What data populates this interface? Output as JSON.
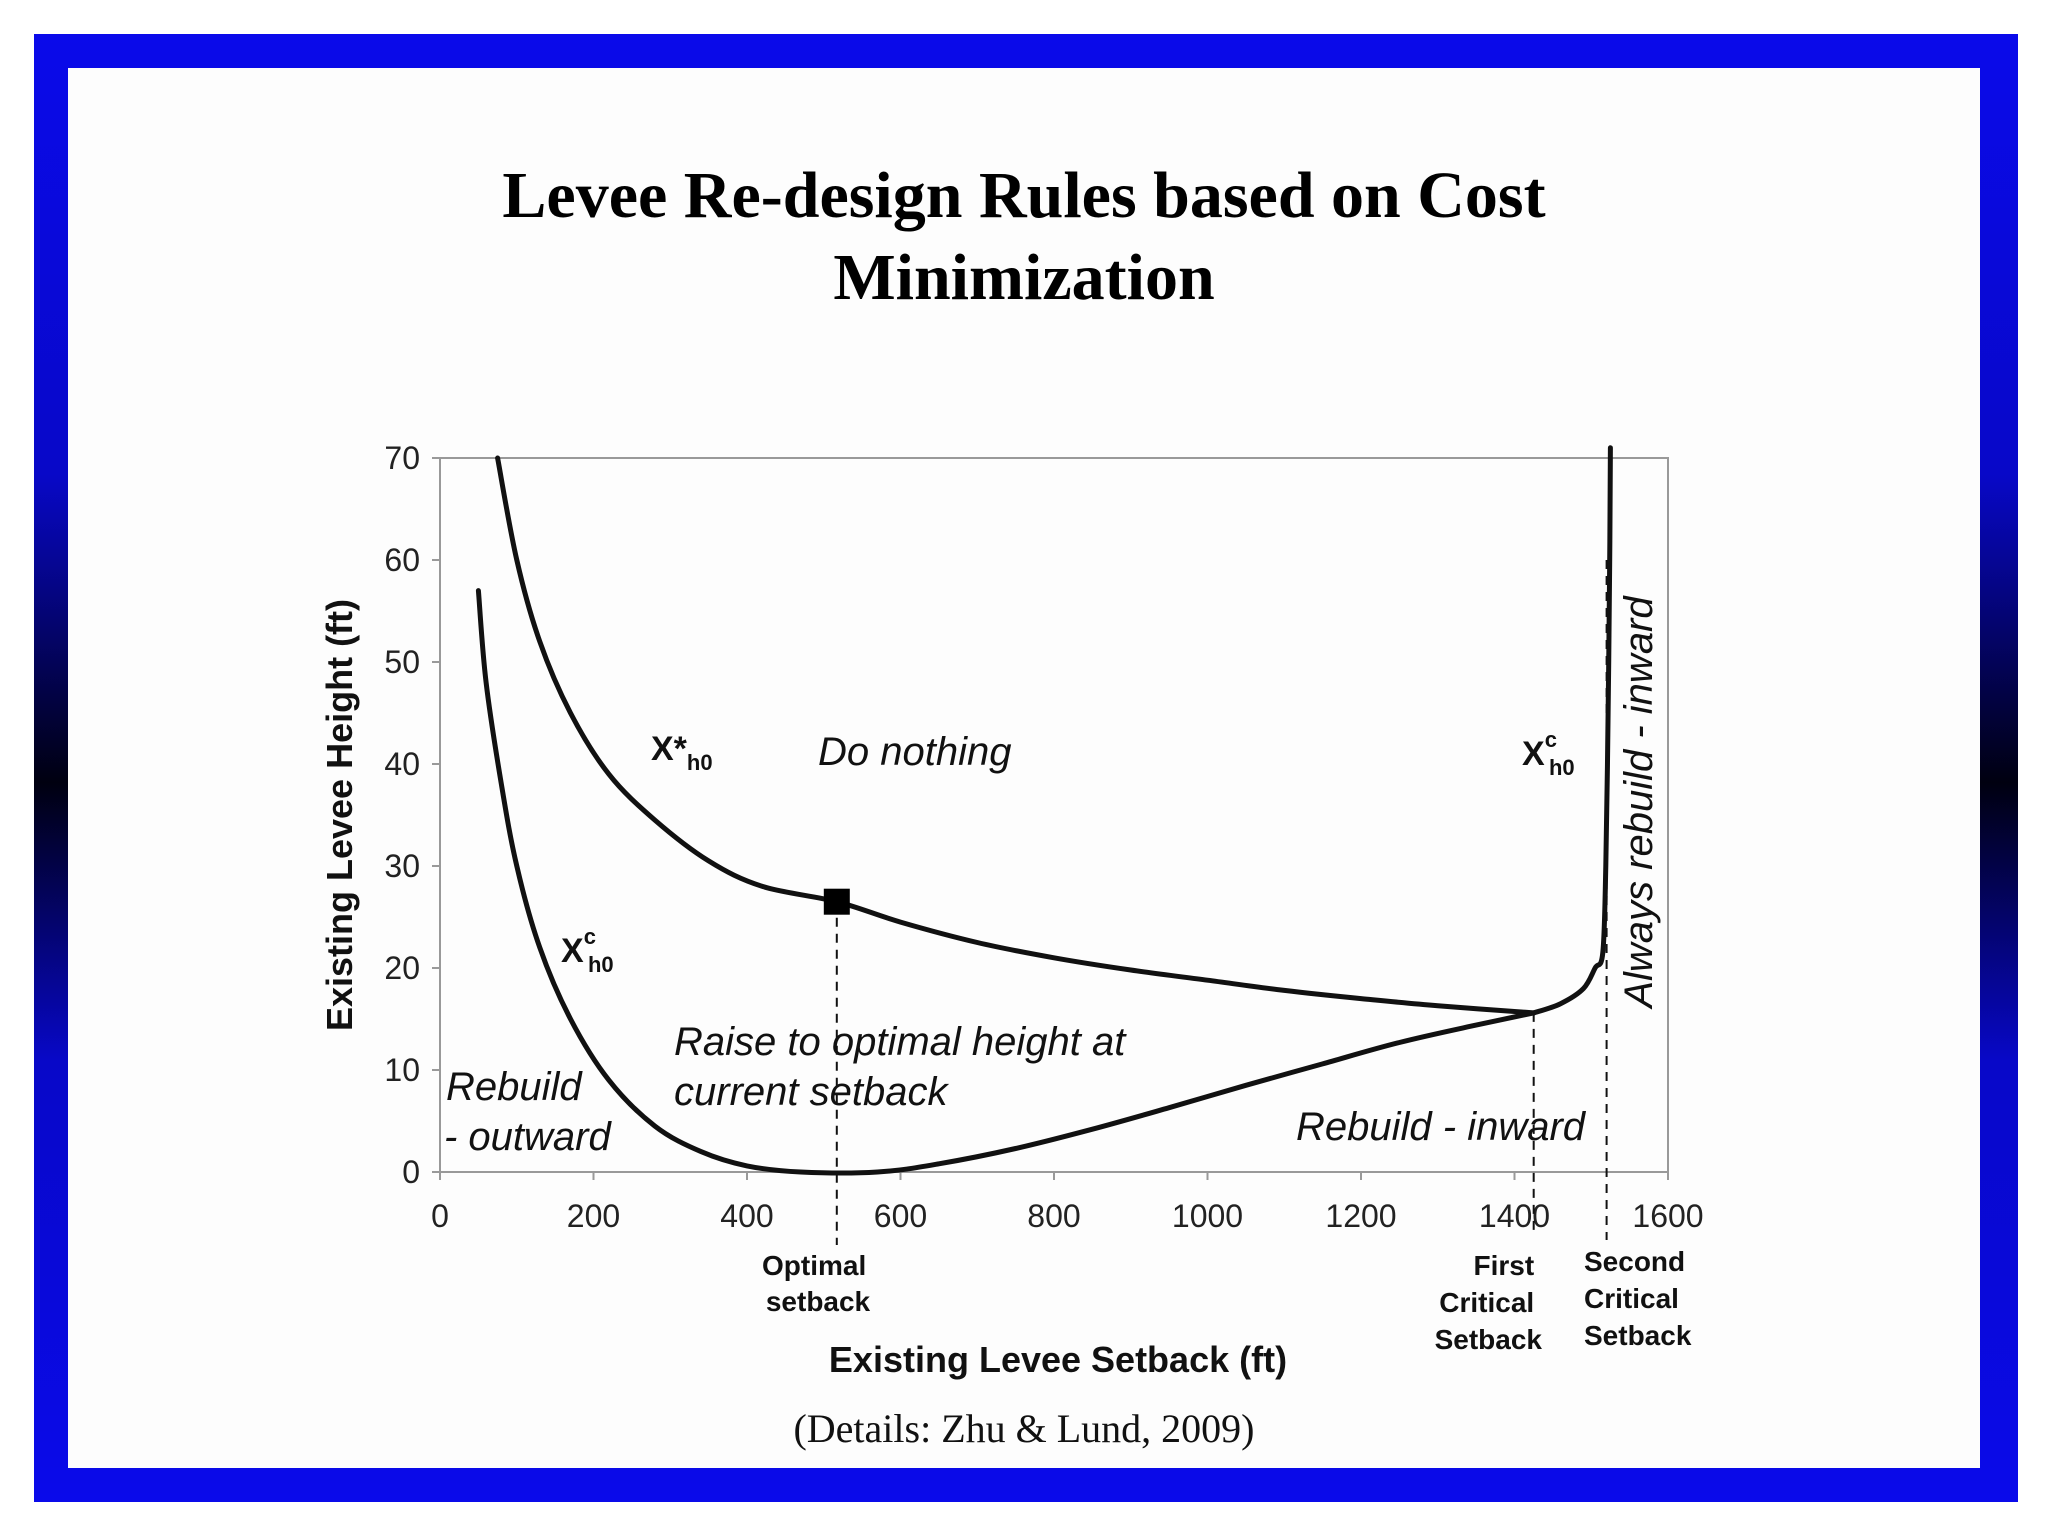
{
  "slide": {
    "title_line1": "Levee Re-design Rules based on Cost",
    "title_line2": "Minimization",
    "citation": "(Details: Zhu & Lund, 2009)",
    "frame_color": "#0a0aea"
  },
  "chart_data": {
    "type": "line",
    "xlabel": "Existing Levee Setback (ft)",
    "ylabel": "Existing Levee Height (ft)",
    "xlim": [
      0,
      1600
    ],
    "ylim": [
      0,
      70
    ],
    "x_ticks": [
      0,
      200,
      400,
      600,
      800,
      1000,
      1200,
      1400,
      1600
    ],
    "y_ticks": [
      0,
      10,
      20,
      30,
      40,
      50,
      60,
      70
    ],
    "grid": false,
    "series": [
      {
        "values": [
          [
            75,
            70
          ],
          [
            100,
            60
          ],
          [
            130,
            52
          ],
          [
            170,
            45
          ],
          [
            220,
            39
          ],
          [
            280,
            34.5
          ],
          [
            350,
            30.5
          ],
          [
            420,
            28
          ],
          [
            517,
            26.5
          ],
          [
            600,
            24.5
          ],
          [
            700,
            22.5
          ],
          [
            800,
            21
          ],
          [
            900,
            19.8
          ],
          [
            1000,
            18.8
          ],
          [
            1100,
            17.8
          ],
          [
            1200,
            17.0
          ],
          [
            1300,
            16.3
          ],
          [
            1425,
            15.6
          ]
        ]
      },
      {
        "values": [
          [
            50,
            57
          ],
          [
            60,
            48
          ],
          [
            80,
            38
          ],
          [
            100,
            30
          ],
          [
            130,
            22
          ],
          [
            170,
            15
          ],
          [
            220,
            9
          ],
          [
            280,
            4.5
          ],
          [
            340,
            2
          ],
          [
            400,
            0.6
          ],
          [
            470,
            0
          ],
          [
            570,
            0
          ],
          [
            650,
            0.8
          ],
          [
            750,
            2.3
          ],
          [
            850,
            4.2
          ],
          [
            950,
            6.3
          ],
          [
            1050,
            8.5
          ],
          [
            1150,
            10.6
          ],
          [
            1250,
            12.7
          ],
          [
            1350,
            14.4
          ],
          [
            1425,
            15.6
          ]
        ]
      },
      {
        "values": [
          [
            1425,
            15.6
          ],
          [
            1460,
            16.5
          ],
          [
            1490,
            18
          ],
          [
            1505,
            20
          ],
          [
            1515,
            21.5
          ],
          [
            1519,
            30
          ],
          [
            1522,
            45
          ],
          [
            1524,
            60
          ],
          [
            1525,
            71
          ]
        ]
      }
    ],
    "marker": {
      "x": 517,
      "y": 26.5
    },
    "dashed_lines": [
      {
        "x": 517,
        "label": "Optimal\nsetback"
      },
      {
        "x": 1425,
        "label": "First\nCritical\nSetback"
      },
      {
        "x": 1520,
        "label": "Second\nCritical\nSetback"
      }
    ],
    "annotations": {
      "upper_curve_label": "X*",
      "upper_curve_sub": "h0",
      "critical_label": "X",
      "critical_sup": "c",
      "critical_sub": "h0",
      "do_nothing": "Do nothing",
      "raise_line1": "Raise to optimal height at",
      "raise_line2": "current setback",
      "rebuild_out_line1": "Rebuild",
      "rebuild_out_line2": "- outward",
      "rebuild_in": "Rebuild - inward",
      "always_rebuild": "Always rebuild - inward",
      "optimal_setback": [
        "Optimal",
        "setback"
      ],
      "first_critical": [
        "First",
        "Critical",
        "Setback"
      ],
      "second_critical": [
        "Second",
        "Critical",
        "Setback"
      ]
    }
  }
}
